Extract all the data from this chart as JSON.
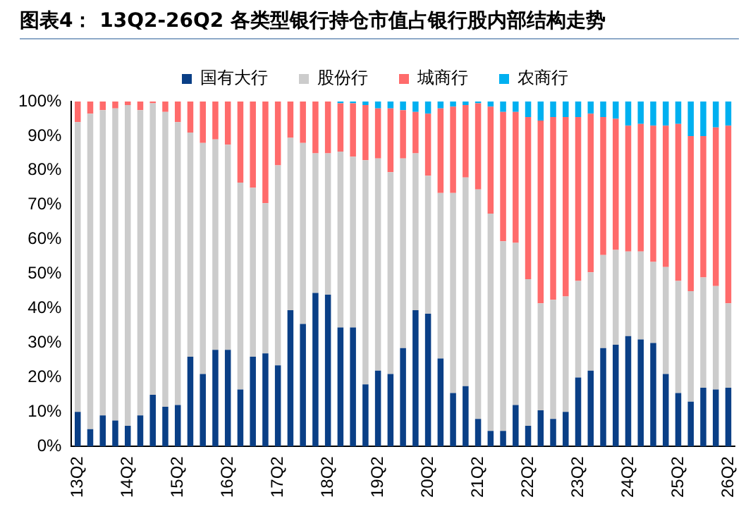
{
  "chart_data": {
    "type": "bar",
    "title": "图表4：  13Q2-26Q2 各类型银行持仓市值占银行股内部结构走势",
    "stacked": true,
    "legend": "top",
    "categories": [
      "13Q2",
      null,
      null,
      null,
      "14Q2",
      null,
      null,
      null,
      "15Q2",
      null,
      null,
      null,
      "16Q2",
      null,
      null,
      null,
      "17Q2",
      null,
      null,
      null,
      "18Q2",
      null,
      null,
      null,
      "19Q2",
      null,
      null,
      null,
      "20Q2",
      null,
      null,
      null,
      "21Q2",
      null,
      null,
      null,
      "22Q2",
      null,
      null,
      null,
      "23Q2",
      null,
      null,
      null,
      "24Q2",
      null,
      null,
      null,
      "25Q2",
      null,
      null,
      null,
      "26Q2"
    ],
    "series": [
      {
        "name": "国有大行",
        "color": "#0a3f86",
        "values": [
          10,
          5,
          9,
          7.5,
          6,
          9,
          15,
          11.5,
          12,
          26,
          21,
          28,
          28,
          16.5,
          26,
          27,
          23.5,
          39.5,
          35.5,
          44.5,
          44,
          34.5,
          34.5,
          18,
          22,
          21,
          28.5,
          39.5,
          38.5,
          25.5,
          15.5,
          17.5,
          8,
          4.5,
          4.5,
          12,
          6,
          10.5,
          8,
          10,
          20,
          22,
          28.5,
          29.5,
          32,
          31,
          30,
          21,
          15.5,
          13,
          17,
          16.5,
          17
        ]
      },
      {
        "name": "股份行",
        "color": "#cccccc",
        "values": [
          84,
          91.5,
          88.5,
          90.5,
          93,
          88.5,
          84.5,
          85.5,
          82,
          65,
          67,
          61,
          59.5,
          60,
          49,
          43.5,
          58,
          50,
          52.5,
          40.5,
          41,
          51,
          49.5,
          65,
          61.5,
          58.5,
          55,
          45.5,
          40,
          48,
          58,
          60.5,
          66.5,
          63,
          55,
          47,
          42.5,
          31,
          34.5,
          33.5,
          28,
          28.5,
          27,
          27.5,
          24.5,
          25.5,
          23.5,
          31,
          32.5,
          32,
          32,
          30,
          24.5
        ]
      },
      {
        "name": "城商行",
        "color": "#ff6b6b",
        "values": [
          6,
          3.5,
          2.5,
          2,
          1,
          2.5,
          0.5,
          3,
          6,
          9,
          12,
          11,
          12.5,
          23.5,
          25,
          29.5,
          18.5,
          10.5,
          12,
          15,
          15,
          14,
          15.5,
          16,
          14.5,
          18.5,
          14,
          12,
          18,
          24.5,
          25,
          21,
          25,
          31,
          37.5,
          38,
          47,
          53,
          53,
          52,
          47.5,
          46,
          40,
          38,
          36.5,
          37,
          39.5,
          41,
          45.5,
          45,
          41,
          46,
          51.5
        ]
      },
      {
        "name": "农商行",
        "color": "#00b0f0",
        "values": [
          0,
          0,
          0,
          0,
          0,
          0,
          0,
          0,
          0,
          0,
          0,
          0,
          0,
          0,
          0,
          0,
          0,
          0,
          0,
          0,
          0,
          0.5,
          0.5,
          1,
          2,
          2,
          2.5,
          3,
          3.5,
          2,
          1.5,
          1,
          0.5,
          1.5,
          3,
          3,
          4.5,
          5.5,
          4.5,
          4.5,
          4.5,
          3.5,
          4.5,
          5,
          7,
          6.5,
          7,
          7,
          6.5,
          10,
          10,
          7.5,
          7
        ]
      }
    ],
    "ylim": [
      0,
      100
    ],
    "yticks": [
      {
        "value": 0,
        "label": "0%"
      },
      {
        "value": 10,
        "label": "10%"
      },
      {
        "value": 20,
        "label": "20%"
      },
      {
        "value": 30,
        "label": "30%"
      },
      {
        "value": 40,
        "label": "40%"
      },
      {
        "value": 50,
        "label": "50%"
      },
      {
        "value": 60,
        "label": "60%"
      },
      {
        "value": 70,
        "label": "70%"
      },
      {
        "value": 80,
        "label": "80%"
      },
      {
        "value": 90,
        "label": "90%"
      },
      {
        "value": 100,
        "label": "100%"
      }
    ]
  }
}
